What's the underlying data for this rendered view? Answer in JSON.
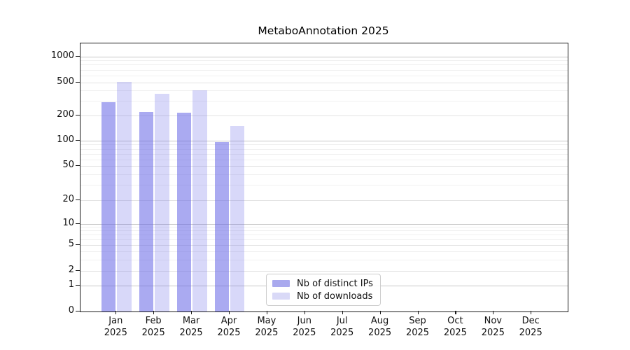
{
  "title": "MetaboAnnotation 2025",
  "chart_data": {
    "type": "bar",
    "title": "MetaboAnnotation 2025",
    "y_scale": "log",
    "grid": true,
    "legend_position": "bottom-center",
    "y_ticks": [
      0,
      1,
      2,
      5,
      10,
      20,
      50,
      100,
      200,
      500,
      1000
    ],
    "ylim": [
      0,
      1300
    ],
    "categories": [
      "Jan",
      "Feb",
      "Mar",
      "Apr",
      "May",
      "Jun",
      "Jul",
      "Aug",
      "Sep",
      "Oct",
      "Nov",
      "Dec"
    ],
    "x_year_label": "2025",
    "series": [
      {
        "name": "Nb of distinct IPs",
        "fill": "rgba(100,100,230,0.55)",
        "swatch": "#a9a9ee",
        "values": [
          285,
          220,
          215,
          97,
          null,
          null,
          null,
          null,
          null,
          null,
          null,
          null
        ]
      },
      {
        "name": "Nb of downloads",
        "fill": "rgba(100,100,230,0.25)",
        "swatch": "#d9d9f7",
        "values": [
          505,
          365,
          400,
          150,
          null,
          null,
          null,
          null,
          null,
          null,
          null,
          null
        ]
      }
    ]
  },
  "colors": {
    "axis": "#1a1a1a",
    "grid_decade": "#c6c6c6",
    "grid_mid": "#e2e2e2",
    "grid_minor": "#f0f0f0",
    "text": "#111111",
    "background": "#ffffff"
  }
}
